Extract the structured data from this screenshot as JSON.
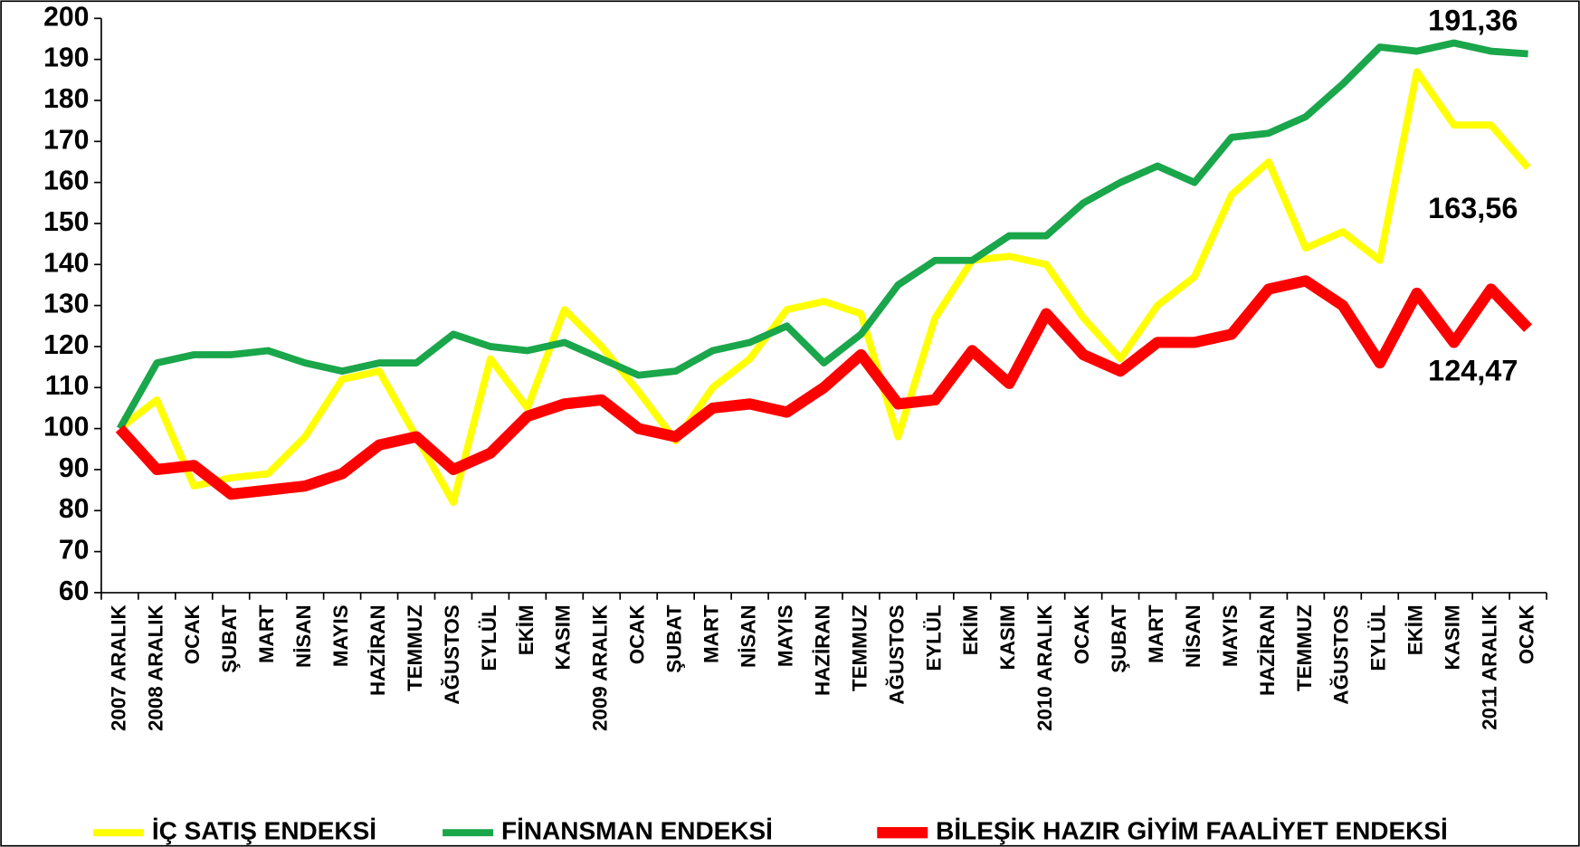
{
  "chart_data": {
    "type": "line",
    "categories": [
      "2007 ARALIK",
      "2008 ARALIK",
      "OCAK",
      "ŞUBAT",
      "MART",
      "NİSAN",
      "MAYIS",
      "HAZİRAN",
      "TEMMUZ",
      "AĞUSTOS",
      "EYLÜL",
      "EKİM",
      "KASIM",
      "2009 ARALIK",
      "OCAK",
      "ŞUBAT",
      "MART",
      "NİSAN",
      "MAYIS",
      "HAZİRAN",
      "TEMMUZ",
      "AĞUSTOS",
      "EYLÜL",
      "EKİM",
      "KASIM",
      "2010 ARALIK",
      "OCAK",
      "ŞUBAT",
      "MART",
      "NİSAN",
      "MAYIS",
      "HAZİRAN",
      "TEMMUZ",
      "AĞUSTOS",
      "EYLÜL",
      "EKİM",
      "KASIM",
      "2011 ARALIK",
      "OCAK"
    ],
    "series": [
      {
        "name": "İÇ SATIŞ ENDEKSİ",
        "color": "#ffff00",
        "values": [
          100,
          107,
          86,
          88,
          89,
          98,
          112,
          114,
          98,
          82,
          117,
          105,
          129,
          120,
          109,
          97,
          110,
          117,
          129,
          131,
          128,
          98,
          127,
          141,
          142,
          140,
          127,
          117,
          130,
          137,
          157,
          165,
          144,
          148,
          141,
          187,
          174,
          174,
          163.56
        ],
        "value_labels": [
          null,
          null,
          null,
          null,
          null,
          null,
          null,
          null,
          null,
          null,
          null,
          null,
          null,
          null,
          null,
          null,
          null,
          null,
          null,
          null,
          null,
          null,
          null,
          null,
          null,
          null,
          null,
          null,
          null,
          null,
          null,
          null,
          null,
          null,
          null,
          null,
          null,
          null,
          "163,56"
        ]
      },
      {
        "name": "FİNANSMAN ENDEKSİ",
        "color": "#1aa64a",
        "values": [
          100,
          116,
          118,
          118,
          119,
          116,
          114,
          116,
          116,
          123,
          120,
          119,
          121,
          117,
          113,
          114,
          119,
          121,
          125,
          116,
          123,
          135,
          141,
          141,
          147,
          147,
          155,
          160,
          164,
          160,
          171,
          172,
          176,
          184,
          193,
          192,
          194,
          192,
          191.36
        ],
        "value_labels": [
          null,
          null,
          null,
          null,
          null,
          null,
          null,
          null,
          null,
          null,
          null,
          null,
          null,
          null,
          null,
          null,
          null,
          null,
          null,
          null,
          null,
          null,
          null,
          null,
          null,
          null,
          null,
          null,
          null,
          null,
          null,
          null,
          null,
          null,
          null,
          null,
          null,
          null,
          "191,36"
        ]
      },
      {
        "name": "BİLEŞİK HAZIR GİYİM FAALİYET ENDEKSİ",
        "color": "#ff0000",
        "values": [
          100,
          90,
          91,
          84,
          85,
          86,
          89,
          96,
          98,
          90,
          94,
          103,
          106,
          107,
          100,
          98,
          105,
          106,
          104,
          110,
          118,
          106,
          107,
          119,
          111,
          128,
          118,
          114,
          121,
          121,
          123,
          134,
          136,
          130,
          116,
          133,
          121,
          134,
          124.47
        ],
        "value_labels": [
          null,
          null,
          null,
          null,
          null,
          null,
          null,
          null,
          null,
          null,
          null,
          null,
          null,
          null,
          null,
          null,
          null,
          null,
          null,
          null,
          null,
          null,
          null,
          null,
          null,
          null,
          null,
          null,
          null,
          null,
          null,
          null,
          null,
          null,
          null,
          null,
          null,
          null,
          "124,47"
        ]
      }
    ],
    "ylim": [
      60,
      200
    ],
    "yticks": [
      60,
      70,
      80,
      90,
      100,
      110,
      120,
      130,
      140,
      150,
      160,
      170,
      180,
      190,
      200
    ],
    "legend": "bottom"
  }
}
